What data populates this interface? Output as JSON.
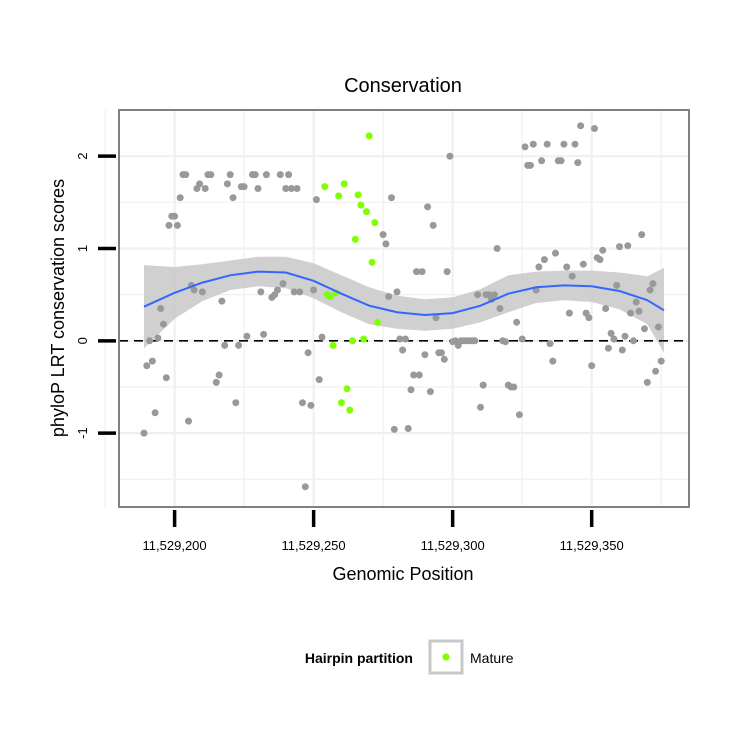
{
  "chart_data": {
    "type": "scatter",
    "title": "Conservation",
    "xlabel": "Genomic Position",
    "ylabel": "phyloP LRT conservation scores",
    "xlim": [
      11529180,
      11529385
    ],
    "ylim": [
      -1.8,
      2.5
    ],
    "x_ticks": [
      11529200,
      11529250,
      11529300,
      11529350
    ],
    "x_tick_labels": [
      "11,529,200",
      "11,529,250",
      "11,529,300",
      "11,529,350"
    ],
    "y_ticks": [
      -1,
      0,
      1,
      2
    ],
    "y_tick_labels": [
      "-1",
      "0",
      "1",
      "2"
    ],
    "grid": true,
    "reference_line": {
      "y": 0,
      "style": "dashed"
    },
    "legend": {
      "title": "Hairpin partition",
      "placement": "bottom",
      "entries": [
        "Mature"
      ]
    },
    "colors": {
      "background": "#ffffff",
      "grid": "#f0f0f0",
      "gray_points": "#999999",
      "mature_points": "#7fff00",
      "smooth_line": "#3366ff",
      "confidence_band": "#c8c8c8"
    },
    "smooth": {
      "x": [
        11529189,
        11529200,
        11529210,
        11529220,
        11529230,
        11529240,
        11529250,
        11529260,
        11529270,
        11529280,
        11529290,
        11529300,
        11529310,
        11529320,
        11529330,
        11529340,
        11529350,
        11529360,
        11529370,
        11529376
      ],
      "y": [
        0.37,
        0.52,
        0.63,
        0.71,
        0.75,
        0.74,
        0.65,
        0.51,
        0.38,
        0.31,
        0.28,
        0.3,
        0.38,
        0.51,
        0.58,
        0.6,
        0.59,
        0.54,
        0.44,
        0.33
      ],
      "lo": [
        -0.08,
        0.24,
        0.43,
        0.55,
        0.59,
        0.57,
        0.46,
        0.31,
        0.18,
        0.13,
        0.11,
        0.13,
        0.2,
        0.31,
        0.41,
        0.44,
        0.42,
        0.34,
        0.18,
        -0.13
      ],
      "hi": [
        0.82,
        0.8,
        0.83,
        0.87,
        0.91,
        0.91,
        0.84,
        0.71,
        0.58,
        0.49,
        0.45,
        0.47,
        0.56,
        0.71,
        0.75,
        0.76,
        0.76,
        0.74,
        0.7,
        0.79
      ]
    },
    "series": [
      {
        "legend": false,
        "points": [
          [
            11529189,
            -1.0
          ],
          [
            11529190,
            -0.27
          ],
          [
            11529191,
            0.0
          ],
          [
            11529192,
            -0.22
          ],
          [
            11529193,
            -0.78
          ],
          [
            11529194,
            0.03
          ],
          [
            11529195,
            0.35
          ],
          [
            11529196,
            0.18
          ],
          [
            11529197,
            -0.4
          ],
          [
            11529198,
            1.25
          ],
          [
            11529199,
            1.35
          ],
          [
            11529200,
            1.35
          ],
          [
            11529201,
            1.25
          ],
          [
            11529202,
            1.55
          ],
          [
            11529203,
            1.8
          ],
          [
            11529204,
            1.8
          ],
          [
            11529205,
            -0.87
          ],
          [
            11529206,
            0.6
          ],
          [
            11529207,
            0.55
          ],
          [
            11529208,
            1.65
          ],
          [
            11529209,
            1.7
          ],
          [
            11529210,
            0.53
          ],
          [
            11529211,
            1.65
          ],
          [
            11529212,
            1.8
          ],
          [
            11529213,
            1.8
          ],
          [
            11529215,
            -0.45
          ],
          [
            11529216,
            -0.37
          ],
          [
            11529217,
            0.43
          ],
          [
            11529218,
            -0.05
          ],
          [
            11529219,
            1.7
          ],
          [
            11529220,
            1.8
          ],
          [
            11529221,
            1.55
          ],
          [
            11529222,
            -0.67
          ],
          [
            11529223,
            -0.05
          ],
          [
            11529224,
            1.67
          ],
          [
            11529225,
            1.67
          ],
          [
            11529226,
            0.05
          ],
          [
            11529228,
            1.8
          ],
          [
            11529229,
            1.8
          ],
          [
            11529230,
            1.65
          ],
          [
            11529231,
            0.53
          ],
          [
            11529232,
            0.07
          ],
          [
            11529233,
            1.8
          ],
          [
            11529235,
            0.47
          ],
          [
            11529236,
            0.5
          ],
          [
            11529237,
            0.55
          ],
          [
            11529238,
            1.8
          ],
          [
            11529239,
            0.62
          ],
          [
            11529240,
            1.65
          ],
          [
            11529241,
            1.8
          ],
          [
            11529242,
            1.65
          ],
          [
            11529243,
            0.53
          ],
          [
            11529244,
            1.65
          ],
          [
            11529245,
            0.53
          ],
          [
            11529246,
            -0.67
          ],
          [
            11529247,
            -1.58
          ],
          [
            11529248,
            -0.13
          ],
          [
            11529249,
            -0.7
          ],
          [
            11529250,
            0.55
          ],
          [
            11529251,
            1.53
          ],
          [
            11529252,
            -0.42
          ],
          [
            11529253,
            0.04
          ],
          [
            11529275,
            1.15
          ],
          [
            11529276,
            1.05
          ],
          [
            11529277,
            0.48
          ],
          [
            11529278,
            1.55
          ],
          [
            11529279,
            -0.96
          ],
          [
            11529280,
            0.53
          ],
          [
            11529281,
            0.02
          ],
          [
            11529282,
            -0.1
          ],
          [
            11529283,
            0.02
          ],
          [
            11529284,
            -0.95
          ],
          [
            11529285,
            -0.53
          ],
          [
            11529286,
            -0.37
          ],
          [
            11529287,
            0.75
          ],
          [
            11529288,
            -0.37
          ],
          [
            11529289,
            0.75
          ],
          [
            11529290,
            -0.15
          ],
          [
            11529291,
            1.45
          ],
          [
            11529292,
            -0.55
          ],
          [
            11529293,
            1.25
          ],
          [
            11529294,
            0.25
          ],
          [
            11529295,
            -0.13
          ],
          [
            11529296,
            -0.13
          ],
          [
            11529297,
            -0.2
          ],
          [
            11529298,
            0.75
          ],
          [
            11529299,
            2.0
          ],
          [
            11529300,
            -0.01
          ],
          [
            11529301,
            0.0
          ],
          [
            11529302,
            -0.05
          ],
          [
            11529303,
            0.0
          ],
          [
            11529304,
            0.0
          ],
          [
            11529305,
            0.0
          ],
          [
            11529306,
            0.0
          ],
          [
            11529307,
            0.0
          ],
          [
            11529308,
            0.0
          ],
          [
            11529309,
            0.5
          ],
          [
            11529310,
            -0.72
          ],
          [
            11529311,
            -0.48
          ],
          [
            11529312,
            0.5
          ],
          [
            11529313,
            0.5
          ],
          [
            11529314,
            0.45
          ],
          [
            11529315,
            0.5
          ],
          [
            11529316,
            1.0
          ],
          [
            11529317,
            0.35
          ],
          [
            11529318,
            0.0
          ],
          [
            11529319,
            -0.01
          ],
          [
            11529320,
            -0.48
          ],
          [
            11529321,
            -0.5
          ],
          [
            11529322,
            -0.5
          ],
          [
            11529323,
            0.2
          ],
          [
            11529324,
            -0.8
          ],
          [
            11529325,
            0.02
          ],
          [
            11529326,
            2.1
          ],
          [
            11529327,
            1.9
          ],
          [
            11529328,
            1.9
          ],
          [
            11529329,
            2.13
          ],
          [
            11529330,
            0.55
          ],
          [
            11529331,
            0.8
          ],
          [
            11529332,
            1.95
          ],
          [
            11529333,
            0.88
          ],
          [
            11529334,
            2.13
          ],
          [
            11529335,
            -0.03
          ],
          [
            11529336,
            -0.22
          ],
          [
            11529337,
            0.95
          ],
          [
            11529338,
            1.95
          ],
          [
            11529339,
            1.95
          ],
          [
            11529340,
            2.13
          ],
          [
            11529341,
            0.8
          ],
          [
            11529342,
            0.3
          ],
          [
            11529343,
            0.7
          ],
          [
            11529344,
            2.13
          ],
          [
            11529345,
            1.93
          ],
          [
            11529346,
            2.33
          ],
          [
            11529347,
            0.83
          ],
          [
            11529348,
            0.3
          ],
          [
            11529349,
            0.25
          ],
          [
            11529350,
            -0.27
          ],
          [
            11529351,
            2.3
          ],
          [
            11529352,
            0.9
          ],
          [
            11529353,
            0.88
          ],
          [
            11529354,
            0.98
          ],
          [
            11529355,
            0.35
          ],
          [
            11529356,
            -0.08
          ],
          [
            11529357,
            0.08
          ],
          [
            11529358,
            0.02
          ],
          [
            11529359,
            0.6
          ],
          [
            11529360,
            1.02
          ],
          [
            11529361,
            -0.1
          ],
          [
            11529362,
            0.05
          ],
          [
            11529363,
            1.03
          ],
          [
            11529364,
            0.3
          ],
          [
            11529365,
            0.0
          ],
          [
            11529366,
            0.42
          ],
          [
            11529367,
            0.32
          ],
          [
            11529368,
            1.15
          ],
          [
            11529369,
            0.13
          ],
          [
            11529370,
            -0.45
          ],
          [
            11529371,
            0.55
          ],
          [
            11529372,
            0.62
          ],
          [
            11529373,
            -0.33
          ],
          [
            11529374,
            0.15
          ],
          [
            11529375,
            -0.22
          ]
        ]
      },
      {
        "name": "Mature",
        "legend": true,
        "points": [
          [
            11529254,
            1.67
          ],
          [
            11529255,
            0.5
          ],
          [
            11529256,
            0.48
          ],
          [
            11529257,
            -0.05
          ],
          [
            11529258,
            0.52
          ],
          [
            11529259,
            1.57
          ],
          [
            11529260,
            -0.67
          ],
          [
            11529261,
            1.7
          ],
          [
            11529262,
            -0.52
          ],
          [
            11529263,
            -0.75
          ],
          [
            11529264,
            0.0
          ],
          [
            11529265,
            1.1
          ],
          [
            11529266,
            1.58
          ],
          [
            11529267,
            1.47
          ],
          [
            11529268,
            0.02
          ],
          [
            11529269,
            1.4
          ],
          [
            11529270,
            2.22
          ],
          [
            11529271,
            0.85
          ],
          [
            11529272,
            1.28
          ],
          [
            11529273,
            0.2
          ]
        ]
      }
    ]
  }
}
